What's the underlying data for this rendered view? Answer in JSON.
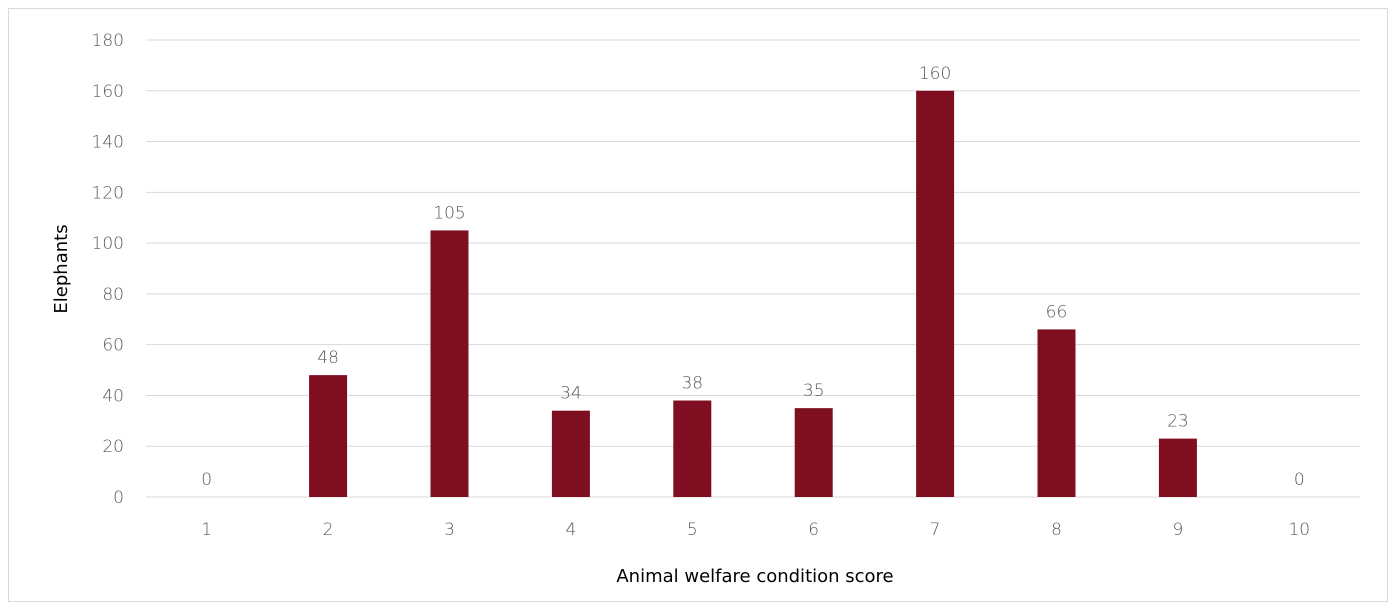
{
  "chart_data": {
    "type": "bar",
    "title": "",
    "xlabel": "Animal welfare condition score",
    "ylabel": "Elephants",
    "categories": [
      "1",
      "2",
      "3",
      "4",
      "5",
      "6",
      "7",
      "8",
      "9",
      "10"
    ],
    "values": [
      0,
      48,
      105,
      34,
      38,
      35,
      160,
      66,
      23,
      0
    ],
    "data_labels": [
      "0",
      "48",
      "105",
      "34",
      "38",
      "35",
      "160",
      "66",
      "23",
      "0"
    ],
    "ylim": [
      0,
      180
    ],
    "y_ticks": [
      "0",
      "20",
      "40",
      "60",
      "80",
      "100",
      "120",
      "140",
      "160",
      "180"
    ],
    "grid": true,
    "legend": "none",
    "colors": {
      "bar": "#7f0e20",
      "gridline": "#d9d9d9",
      "tick_text": "#595959",
      "axis_title": "#000000"
    }
  }
}
